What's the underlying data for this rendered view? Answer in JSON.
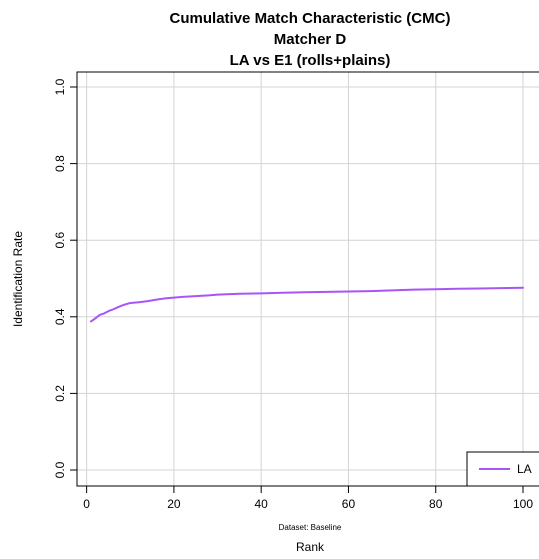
{
  "chart_data": {
    "type": "line",
    "title": "Cumulative Match Characteristic (CMC)",
    "subtitle": "Matcher D",
    "subtitle2": "LA vs E1 (rolls+plains)",
    "xlabel": "Rank",
    "ylabel": "Identification Rate",
    "footnote": "Dataset: Baseline",
    "xlim": [
      1,
      100
    ],
    "ylim": [
      0,
      1
    ],
    "x_ticks": [
      0,
      20,
      40,
      60,
      80,
      100
    ],
    "y_ticks": [
      0.0,
      0.2,
      0.4,
      0.6,
      0.8,
      1.0
    ],
    "x_tick_labels": [
      "0",
      "20",
      "40",
      "60",
      "80",
      "100"
    ],
    "y_tick_labels": [
      "0.0",
      "0.2",
      "0.4",
      "0.6",
      "0.8",
      "1.0"
    ],
    "grid": true,
    "legend": {
      "position": "bottom-right",
      "entries": [
        "LA"
      ]
    },
    "series": [
      {
        "name": "LA",
        "color": "#a855f7",
        "x": [
          1,
          2,
          3,
          4,
          5,
          6,
          7,
          8,
          9,
          10,
          12,
          14,
          16,
          18,
          20,
          22,
          25,
          28,
          30,
          35,
          40,
          45,
          50,
          55,
          60,
          65,
          70,
          75,
          80,
          85,
          90,
          95,
          100
        ],
        "y": [
          0.388,
          0.396,
          0.405,
          0.409,
          0.415,
          0.419,
          0.424,
          0.429,
          0.433,
          0.436,
          0.438,
          0.441,
          0.445,
          0.448,
          0.45,
          0.452,
          0.454,
          0.456,
          0.458,
          0.46,
          0.461,
          0.463,
          0.464,
          0.465,
          0.466,
          0.467,
          0.469,
          0.471,
          0.472,
          0.473,
          0.474,
          0.475,
          0.476
        ]
      }
    ]
  }
}
